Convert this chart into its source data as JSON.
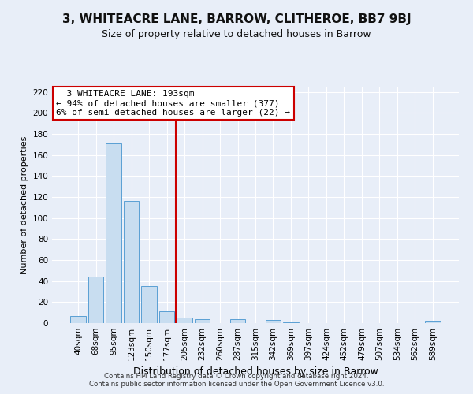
{
  "title": "3, WHITEACRE LANE, BARROW, CLITHEROE, BB7 9BJ",
  "subtitle": "Size of property relative to detached houses in Barrow",
  "xlabel": "Distribution of detached houses by size in Barrow",
  "ylabel": "Number of detached properties",
  "bar_labels": [
    "40sqm",
    "68sqm",
    "95sqm",
    "123sqm",
    "150sqm",
    "177sqm",
    "205sqm",
    "232sqm",
    "260sqm",
    "287sqm",
    "315sqm",
    "342sqm",
    "369sqm",
    "397sqm",
    "424sqm",
    "452sqm",
    "479sqm",
    "507sqm",
    "534sqm",
    "562sqm",
    "589sqm"
  ],
  "bar_values": [
    7,
    44,
    171,
    116,
    35,
    11,
    5,
    4,
    0,
    4,
    0,
    3,
    1,
    0,
    0,
    0,
    0,
    0,
    0,
    0,
    2
  ],
  "bar_color": "#c8ddf0",
  "bar_edge_color": "#5a9fd4",
  "vline_x": 5.5,
  "vline_color": "#cc0000",
  "annotation_title": "3 WHITEACRE LANE: 193sqm",
  "annotation_line1": "← 94% of detached houses are smaller (377)",
  "annotation_line2": "6% of semi-detached houses are larger (22) →",
  "annotation_box_color": "#ffffff",
  "annotation_box_edge": "#cc0000",
  "footer_line1": "Contains HM Land Registry data © Crown copyright and database right 2024.",
  "footer_line2": "Contains public sector information licensed under the Open Government Licence v3.0.",
  "ylim": [
    0,
    225
  ],
  "yticks": [
    0,
    20,
    40,
    60,
    80,
    100,
    120,
    140,
    160,
    180,
    200,
    220
  ],
  "background_color": "#e8eef8",
  "grid_color": "#ffffff",
  "title_fontsize": 11,
  "subtitle_fontsize": 9,
  "tick_fontsize": 7.5,
  "ylabel_fontsize": 8,
  "xlabel_fontsize": 9
}
